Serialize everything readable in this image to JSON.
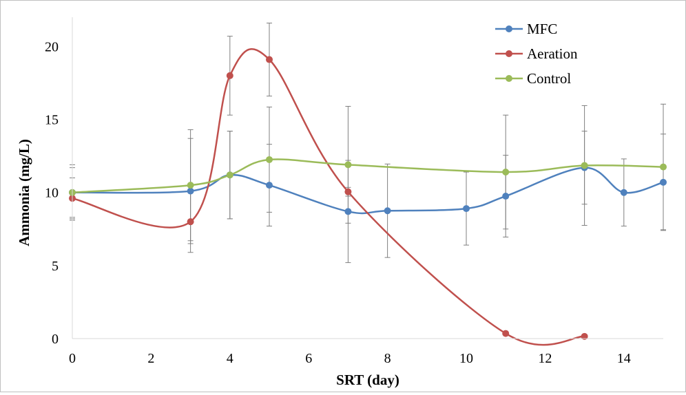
{
  "chart_data": {
    "type": "line",
    "title": "",
    "xlabel": "SRT (day)",
    "ylabel": "Ammonia (mg/L)",
    "xlim": [
      0,
      15
    ],
    "ylim": [
      0,
      22
    ],
    "x_ticks": [
      0,
      2,
      4,
      6,
      8,
      10,
      12,
      14
    ],
    "y_ticks": [
      0,
      5,
      10,
      15,
      20
    ],
    "grid": false,
    "legend_position": "top-right",
    "smooth": true,
    "series": [
      {
        "name": "MFC",
        "color": "#4f81bd",
        "x": [
          0,
          3,
          4,
          5,
          7,
          8,
          10,
          11,
          13,
          14,
          15
        ],
        "y": [
          10.0,
          10.1,
          11.2,
          10.5,
          8.7,
          8.75,
          8.9,
          9.75,
          11.7,
          10.0,
          10.7
        ],
        "err": [
          1.9,
          3.6,
          3.0,
          2.8,
          3.5,
          3.2,
          2.5,
          2.8,
          2.5,
          2.3,
          3.3
        ]
      },
      {
        "name": "Aeration",
        "color": "#c0504d",
        "x": [
          0,
          3,
          4,
          5,
          7,
          11,
          13
        ],
        "y": [
          9.6,
          8.0,
          18.0,
          19.1,
          10.05,
          0.35,
          0.15
        ],
        "err": [
          1.4,
          2.1,
          2.7,
          2.5,
          0.3,
          0.0,
          0.0
        ]
      },
      {
        "name": "Control",
        "color": "#9bbb59",
        "x": [
          0,
          3,
          4,
          5,
          7,
          11,
          13,
          15
        ],
        "y": [
          10.0,
          10.5,
          11.2,
          12.25,
          11.9,
          11.4,
          11.85,
          11.75
        ],
        "err": [
          1.7,
          3.8,
          3.0,
          3.6,
          4.0,
          3.9,
          4.1,
          4.3
        ]
      }
    ]
  }
}
